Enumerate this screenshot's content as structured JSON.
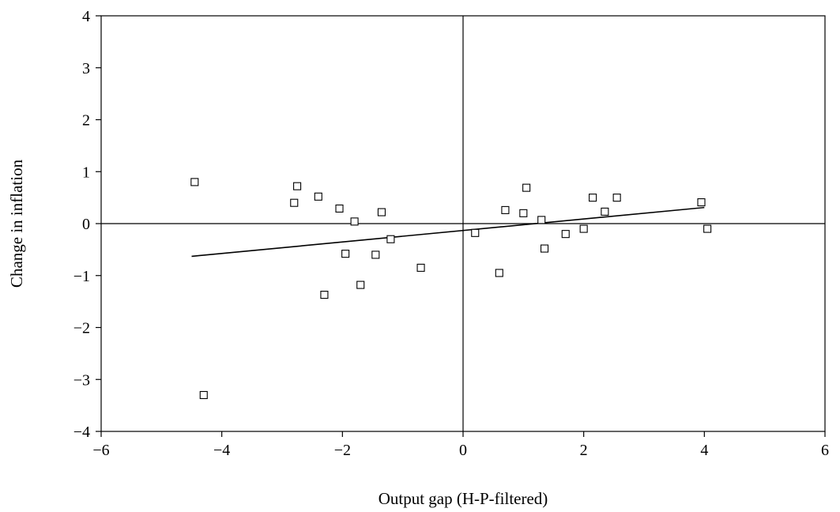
{
  "chart_data": {
    "type": "scatter",
    "title": "",
    "xlabel": "Output gap (H-P-filtered)",
    "ylabel": "Change in inflation",
    "xlim": [
      -6,
      6
    ],
    "ylim": [
      -4,
      4
    ],
    "xticks": [
      -6,
      -4,
      -2,
      0,
      2,
      4,
      6
    ],
    "yticks": [
      -4,
      -3,
      -2,
      -1,
      0,
      1,
      2,
      3,
      4
    ],
    "xtick_labels": [
      "−6",
      "−4",
      "−2",
      "0",
      "2",
      "4",
      "6"
    ],
    "ytick_labels": [
      "−4",
      "−3",
      "−2",
      "−1",
      "0",
      "1",
      "2",
      "3",
      "4"
    ],
    "reference_lines": {
      "x": 0,
      "y": 0
    },
    "grid": false,
    "marker": "open-square",
    "points": [
      {
        "x": -4.45,
        "y": 0.8
      },
      {
        "x": -4.3,
        "y": -3.3
      },
      {
        "x": -2.75,
        "y": 0.72
      },
      {
        "x": -2.8,
        "y": 0.4
      },
      {
        "x": -2.4,
        "y": 0.52
      },
      {
        "x": -2.3,
        "y": -1.37
      },
      {
        "x": -2.05,
        "y": 0.29
      },
      {
        "x": -1.95,
        "y": -0.58
      },
      {
        "x": -1.8,
        "y": 0.04
      },
      {
        "x": -1.7,
        "y": -1.18
      },
      {
        "x": -1.45,
        "y": -0.6
      },
      {
        "x": -1.35,
        "y": 0.22
      },
      {
        "x": -1.2,
        "y": -0.3
      },
      {
        "x": -0.7,
        "y": -0.85
      },
      {
        "x": 0.2,
        "y": -0.18
      },
      {
        "x": 0.6,
        "y": -0.95
      },
      {
        "x": 0.7,
        "y": 0.26
      },
      {
        "x": 1.0,
        "y": 0.2
      },
      {
        "x": 1.05,
        "y": 0.69
      },
      {
        "x": 1.3,
        "y": 0.07
      },
      {
        "x": 1.35,
        "y": -0.48
      },
      {
        "x": 1.7,
        "y": -0.2
      },
      {
        "x": 2.0,
        "y": -0.1
      },
      {
        "x": 2.15,
        "y": 0.5
      },
      {
        "x": 2.35,
        "y": 0.23
      },
      {
        "x": 2.55,
        "y": 0.5
      },
      {
        "x": 3.95,
        "y": 0.41
      },
      {
        "x": 4.05,
        "y": -0.1
      }
    ],
    "fit_line": {
      "x": [
        -4.5,
        4.0
      ],
      "y": [
        -0.63,
        0.31
      ]
    }
  }
}
